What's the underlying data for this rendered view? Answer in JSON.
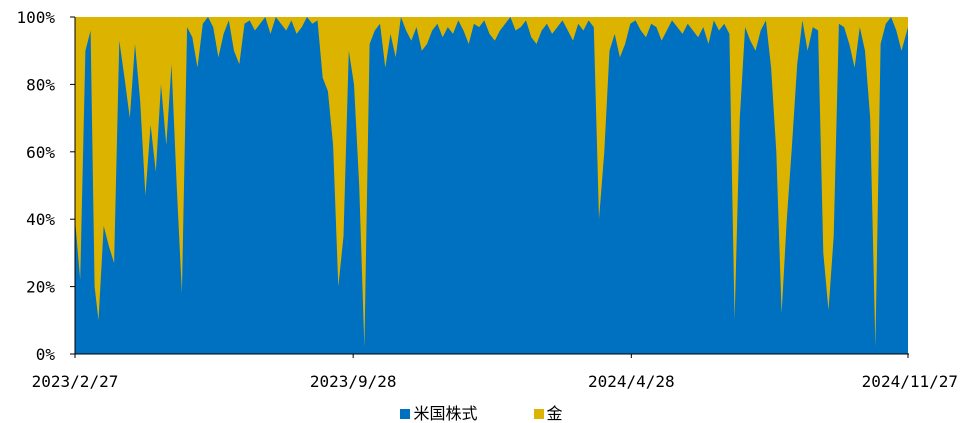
{
  "colors": {
    "stock": "#0070C0",
    "gold": "#DCB400",
    "axis": "#000000"
  },
  "chart_data": {
    "type": "area",
    "stacked": true,
    "percent": true,
    "x_tick_labels": [
      "2023/2/27",
      "2023/9/28",
      "2024/4/28",
      "2024/11/27"
    ],
    "x_range": [
      "2023-02-27",
      "2024-11-27"
    ],
    "y_tick_labels": [
      "0%",
      "20%",
      "40%",
      "60%",
      "80%",
      "100%"
    ],
    "ylim": [
      0,
      100
    ],
    "grid": false,
    "legend_position": "bottom",
    "series": [
      {
        "name": "米国株式",
        "color": "#0070C0"
      },
      {
        "name": "金",
        "color": "#DCB400"
      }
    ],
    "x": [
      "2023-02-27",
      "2023-03-03",
      "2023-03-07",
      "2023-03-11",
      "2023-03-14",
      "2023-03-17",
      "2023-03-21",
      "2023-03-25",
      "2023-03-29",
      "2023-04-02",
      "2023-04-06",
      "2023-04-10",
      "2023-04-14",
      "2023-04-18",
      "2023-04-22",
      "2023-04-26",
      "2023-04-30",
      "2023-05-04",
      "2023-05-08",
      "2023-05-12",
      "2023-05-16",
      "2023-05-20",
      "2023-05-24",
      "2023-05-28",
      "2023-06-01",
      "2023-06-05",
      "2023-06-09",
      "2023-06-13",
      "2023-06-17",
      "2023-06-21",
      "2023-06-25",
      "2023-06-29",
      "2023-07-03",
      "2023-07-07",
      "2023-07-11",
      "2023-07-15",
      "2023-07-19",
      "2023-07-23",
      "2023-07-27",
      "2023-07-31",
      "2023-08-04",
      "2023-08-08",
      "2023-08-12",
      "2023-08-16",
      "2023-08-20",
      "2023-08-24",
      "2023-08-28",
      "2023-09-01",
      "2023-09-05",
      "2023-09-09",
      "2023-09-13",
      "2023-09-17",
      "2023-09-21",
      "2023-09-25",
      "2023-09-29",
      "2023-10-03",
      "2023-10-07",
      "2023-10-11",
      "2023-10-15",
      "2023-10-19",
      "2023-10-23",
      "2023-10-27",
      "2023-10-31",
      "2023-11-04",
      "2023-11-08",
      "2023-11-12",
      "2023-11-16",
      "2023-11-20",
      "2023-11-24",
      "2023-11-28",
      "2023-12-02",
      "2023-12-06",
      "2023-12-10",
      "2023-12-14",
      "2023-12-18",
      "2023-12-22",
      "2023-12-26",
      "2023-12-30",
      "2024-01-03",
      "2024-01-07",
      "2024-01-11",
      "2024-01-15",
      "2024-01-19",
      "2024-01-23",
      "2024-01-27",
      "2024-01-31",
      "2024-02-04",
      "2024-02-08",
      "2024-02-12",
      "2024-02-16",
      "2024-02-20",
      "2024-02-24",
      "2024-02-28",
      "2024-03-03",
      "2024-03-07",
      "2024-03-11",
      "2024-03-15",
      "2024-03-19",
      "2024-03-23",
      "2024-03-27",
      "2024-03-31",
      "2024-04-04",
      "2024-04-08",
      "2024-04-12",
      "2024-04-16",
      "2024-04-20",
      "2024-04-24",
      "2024-04-28",
      "2024-05-02",
      "2024-05-06",
      "2024-05-10",
      "2024-05-14",
      "2024-05-18",
      "2024-05-22",
      "2024-05-26",
      "2024-05-30",
      "2024-06-03",
      "2024-06-07",
      "2024-06-11",
      "2024-06-15",
      "2024-06-19",
      "2024-06-23",
      "2024-06-27",
      "2024-07-01",
      "2024-07-05",
      "2024-07-09",
      "2024-07-13",
      "2024-07-17",
      "2024-07-21",
      "2024-07-25",
      "2024-07-29",
      "2024-08-02",
      "2024-08-06",
      "2024-08-10",
      "2024-08-14",
      "2024-08-18",
      "2024-08-22",
      "2024-08-26",
      "2024-08-30",
      "2024-09-03",
      "2024-09-07",
      "2024-09-11",
      "2024-09-15",
      "2024-09-19",
      "2024-09-23",
      "2024-09-27",
      "2024-10-01",
      "2024-10-05",
      "2024-10-09",
      "2024-10-13",
      "2024-10-17",
      "2024-10-21",
      "2024-10-25",
      "2024-10-29",
      "2024-11-02",
      "2024-11-06",
      "2024-11-10",
      "2024-11-14",
      "2024-11-18",
      "2024-11-22",
      "2024-11-27"
    ],
    "stock_pct": [
      40,
      22,
      90,
      96,
      20,
      10,
      38,
      32,
      27,
      93,
      82,
      70,
      92,
      75,
      47,
      68,
      54,
      80,
      62,
      86,
      50,
      18,
      97,
      94,
      85,
      98,
      100,
      97,
      88,
      95,
      99,
      90,
      86,
      98,
      99,
      96,
      98,
      100,
      95,
      100,
      98,
      96,
      99,
      95,
      97,
      100,
      98,
      99,
      82,
      78,
      62,
      20,
      35,
      90,
      80,
      50,
      2,
      92,
      96,
      98,
      85,
      95,
      88,
      100,
      96,
      93,
      97,
      90,
      92,
      96,
      98,
      94,
      97,
      95,
      99,
      96,
      92,
      98,
      97,
      99,
      95,
      93,
      96,
      98,
      100,
      96,
      97,
      99,
      94,
      92,
      96,
      98,
      95,
      97,
      99,
      96,
      93,
      98,
      96,
      99,
      97,
      40,
      60,
      90,
      95,
      88,
      92,
      98,
      99,
      96,
      94,
      98,
      97,
      93,
      96,
      99,
      97,
      95,
      98,
      96,
      94,
      97,
      92,
      99,
      96,
      98,
      95,
      10,
      70,
      97,
      93,
      90,
      96,
      99,
      85,
      60,
      12,
      40,
      62,
      86,
      99,
      90,
      97,
      96,
      30,
      13,
      35,
      98,
      97,
      92,
      85,
      97,
      90,
      70,
      2,
      92,
      98,
      100,
      96,
      90,
      97
    ]
  },
  "legend": {
    "stock_label": "米国株式",
    "gold_label": "金"
  }
}
